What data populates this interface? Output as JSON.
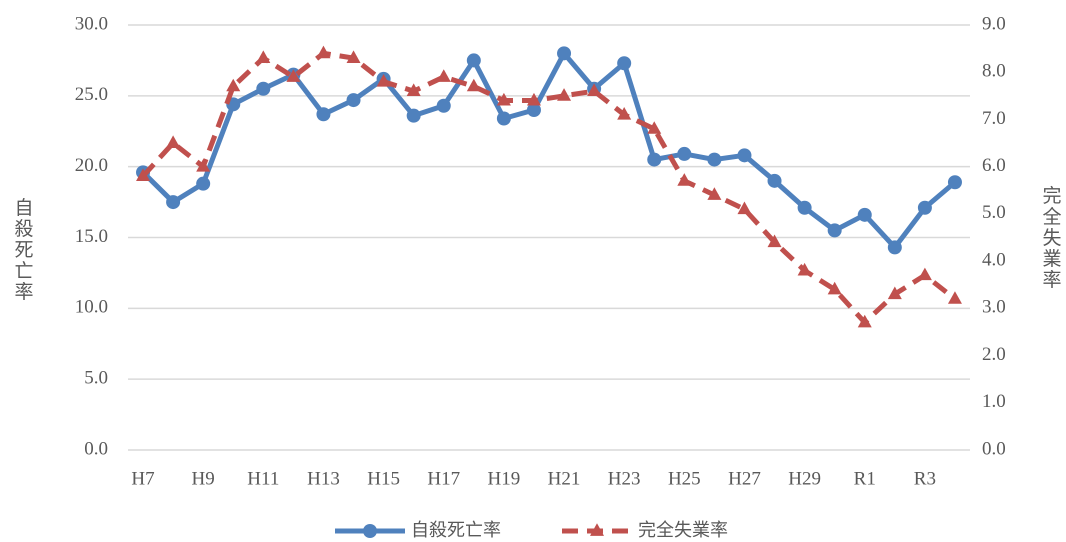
{
  "chart_data": {
    "type": "line",
    "y_label": "自殺死亡率",
    "y2_label": "完全失業率",
    "categories": [
      "H7",
      null,
      "H9",
      null,
      "H11",
      null,
      "H13",
      null,
      "H15",
      null,
      "H17",
      null,
      "H19",
      null,
      "H21",
      null,
      "H23",
      null,
      "H25",
      null,
      "H27",
      null,
      "H29",
      null,
      "R1",
      null,
      "R3",
      null
    ],
    "series": [
      {
        "name": "自殺死亡率",
        "color": "#4f81bd",
        "axis": "y",
        "marker": "circle",
        "values": [
          19.6,
          17.5,
          18.8,
          24.4,
          25.5,
          26.5,
          23.7,
          24.7,
          26.2,
          23.6,
          24.3,
          27.5,
          23.4,
          24.0,
          28.0,
          25.5,
          27.3,
          20.5,
          20.9,
          20.5,
          20.8,
          19.0,
          17.1,
          15.5,
          16.6,
          14.3,
          17.1,
          18.9
        ]
      },
      {
        "name": "完全失業率",
        "color": "#c0504d",
        "axis": "y2",
        "marker": "triangle",
        "dash": true,
        "values": [
          5.8,
          6.5,
          6.0,
          7.7,
          8.3,
          7.9,
          8.4,
          8.3,
          7.8,
          7.6,
          7.9,
          7.7,
          7.4,
          7.4,
          7.5,
          7.6,
          7.1,
          6.8,
          5.7,
          5.4,
          5.1,
          4.4,
          3.8,
          3.4,
          2.7,
          3.3,
          3.7,
          3.2
        ]
      }
    ],
    "ylim": [
      0,
      30
    ],
    "yticks": [
      {
        "value": 0,
        "label": "0.0"
      },
      {
        "value": 5,
        "label": "5.0"
      },
      {
        "value": 10,
        "label": "10.0"
      },
      {
        "value": 15,
        "label": "15.0"
      },
      {
        "value": 20,
        "label": "20.0"
      },
      {
        "value": 25,
        "label": "25.0"
      },
      {
        "value": 30,
        "label": "30.0"
      }
    ],
    "y2lim": [
      0,
      9
    ],
    "y2ticks": [
      {
        "value": 0,
        "label": "0.0"
      },
      {
        "value": 1,
        "label": "1.0"
      },
      {
        "value": 2,
        "label": "2.0"
      },
      {
        "value": 3,
        "label": "3.0"
      },
      {
        "value": 4,
        "label": "4.0"
      },
      {
        "value": 5,
        "label": "5.0"
      },
      {
        "value": 6,
        "label": "6.0"
      },
      {
        "value": 7,
        "label": "7.0"
      },
      {
        "value": 8,
        "label": "8.0"
      },
      {
        "value": 9,
        "label": "9.0"
      }
    ],
    "grid": true,
    "legend": "bottom"
  }
}
